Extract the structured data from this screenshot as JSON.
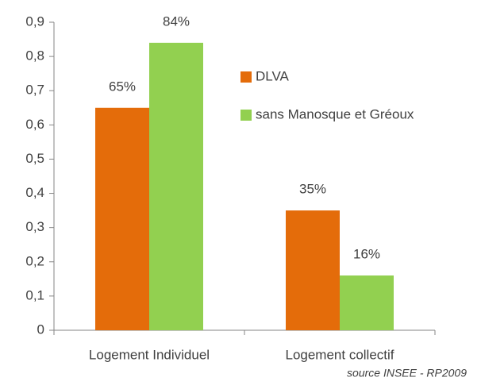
{
  "chart_data": {
    "type": "bar",
    "categories": [
      "Logement Individuel",
      "Logement collectif"
    ],
    "series": [
      {
        "name": "DLVA",
        "color": "#e46c0a",
        "values": [
          0.65,
          0.35
        ],
        "value_labels": [
          "65%",
          "35%"
        ]
      },
      {
        "name": "sans Manosque et Gréoux",
        "color": "#92d050",
        "values": [
          0.84,
          0.16
        ],
        "value_labels": [
          "84%",
          "16%"
        ]
      }
    ],
    "ylim": [
      0,
      0.9
    ],
    "yticks": [
      {
        "value": 0,
        "label": "0"
      },
      {
        "value": 0.1,
        "label": "0,1"
      },
      {
        "value": 0.2,
        "label": "0,2"
      },
      {
        "value": 0.3,
        "label": "0,3"
      },
      {
        "value": 0.4,
        "label": "0,4"
      },
      {
        "value": 0.5,
        "label": "0,5"
      },
      {
        "value": 0.6,
        "label": "0,6"
      },
      {
        "value": 0.7,
        "label": "0,7"
      },
      {
        "value": 0.8,
        "label": "0,8"
      },
      {
        "value": 0.9,
        "label": "0,9"
      }
    ],
    "legend": "right",
    "annotation": "source INSEE - RP2009"
  }
}
